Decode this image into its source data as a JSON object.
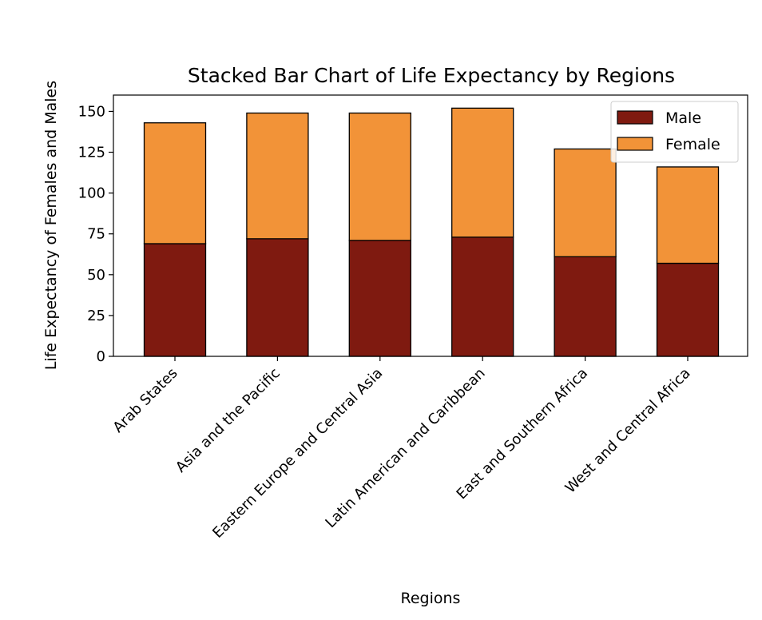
{
  "chart_data": {
    "type": "bar",
    "stacked": true,
    "title": "Stacked Bar Chart of Life Expectancy by Regions",
    "xlabel": "Regions",
    "ylabel": "Life Expectancy of Females and Males",
    "categories": [
      "Arab States",
      "Asia and the Pacific",
      "Eastern Europe and Central Asia",
      "Latin American and Caribbean",
      "East and Southern Africa",
      "West and Central Africa"
    ],
    "series": [
      {
        "name": "Male",
        "color": "#7f1a10",
        "values": [
          69,
          72,
          71,
          73,
          61,
          57
        ]
      },
      {
        "name": "Female",
        "color": "#f29338",
        "values": [
          74,
          77,
          78,
          79,
          66,
          59
        ]
      }
    ],
    "ylim": [
      0,
      160
    ],
    "yticks": [
      0,
      25,
      50,
      75,
      100,
      125,
      150
    ],
    "grid": false,
    "legend_position": "top-right"
  }
}
